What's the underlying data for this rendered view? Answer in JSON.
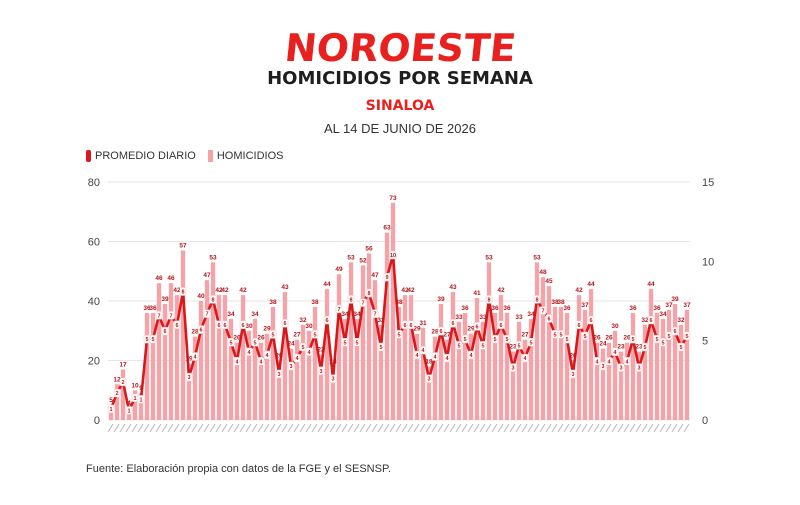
{
  "header": {
    "brand": "NOROESTE",
    "title": "HOMICIDIOS POR SEMANA",
    "region": "SINALOA",
    "date": "AL 14 DE JUNIO DE 2026"
  },
  "legend": {
    "line_label": "PROMEDIO DIARIO",
    "bar_label": "HOMICIDIOS"
  },
  "source": "Fuente: Elaboración propia con datos de la FGE y el SESNSP.",
  "colors": {
    "bar": "#f5a3a8",
    "line": "#d7191c",
    "accent": "#e8211f"
  },
  "chart_data": {
    "type": "bar",
    "grid": true,
    "legend_position": "top-left",
    "y_left": {
      "ticks": [
        0,
        20,
        40,
        60,
        80
      ],
      "ylim": [
        0,
        80
      ]
    },
    "y_right": {
      "ticks": [
        0,
        5,
        10,
        15
      ],
      "ylim": [
        0,
        15
      ]
    },
    "series": [
      {
        "name": "HOMICIDIOS",
        "type": "bar",
        "axis": "left",
        "values": [
          5,
          12,
          17,
          4,
          10,
          9,
          36,
          36,
          46,
          39,
          46,
          42,
          57,
          19,
          28,
          40,
          47,
          53,
          42,
          42,
          34,
          26,
          42,
          30,
          34,
          26,
          29,
          38,
          20,
          43,
          24,
          27,
          32,
          30,
          38,
          22,
          44,
          18,
          49,
          34,
          53,
          34,
          52,
          56,
          47,
          32,
          63,
          73,
          38,
          42,
          42,
          29,
          31,
          18,
          28,
          39,
          27,
          43,
          33,
          36,
          29,
          41,
          33,
          53,
          36,
          42,
          36,
          23,
          33,
          27,
          34,
          53,
          48,
          45,
          38,
          38,
          36,
          20,
          42,
          37,
          44,
          26,
          24,
          26,
          30,
          23,
          26,
          36,
          23,
          32,
          44,
          36,
          34,
          37,
          39,
          32,
          37
        ],
        "labels": [
          "5",
          "12",
          "17",
          "4",
          "10",
          "9",
          "36",
          "36",
          "46",
          "39",
          "46",
          "42",
          "57",
          "19",
          "28",
          "40",
          "47",
          "53",
          "42",
          "42",
          "34",
          "26",
          "42",
          "30",
          "34",
          "26",
          "29",
          "38",
          "20",
          "43",
          "24",
          "27",
          "32",
          "30",
          "38",
          "22",
          "44",
          "18",
          "49",
          "34",
          "53",
          "34",
          "52",
          "56",
          "47",
          "32",
          "63",
          "73",
          "38",
          "42",
          "42",
          "29",
          "31",
          "18",
          "28",
          "39",
          "27",
          "43",
          "33",
          "36",
          "29",
          "41",
          "33",
          "53",
          "36",
          "42",
          "36",
          "23",
          "33",
          "27",
          "34",
          "53",
          "48",
          "45",
          "38",
          "38",
          "36",
          "20",
          "42",
          "37",
          "44",
          "26",
          "24",
          "26",
          "30",
          "23",
          "26",
          "36",
          "23",
          "32",
          "44",
          "36",
          "34",
          "37",
          "39",
          "32",
          "37"
        ]
      },
      {
        "name": "PROMEDIO DIARIO",
        "type": "line",
        "axis": "right",
        "values": [
          0.7,
          1.7,
          2.4,
          0.6,
          1.4,
          1.3,
          5.1,
          5.1,
          6.6,
          5.6,
          6.6,
          6.0,
          8.1,
          2.7,
          4.0,
          5.7,
          6.7,
          7.6,
          6.0,
          6.0,
          4.9,
          3.7,
          6.0,
          4.3,
          4.9,
          3.7,
          4.1,
          5.4,
          2.9,
          6.1,
          3.4,
          3.9,
          4.6,
          4.3,
          5.4,
          3.1,
          6.3,
          2.6,
          7.0,
          4.9,
          7.6,
          4.9,
          7.4,
          8.0,
          6.7,
          4.6,
          9.0,
          10.4,
          5.4,
          6.0,
          6.0,
          4.1,
          4.4,
          2.6,
          4.0,
          5.6,
          3.9,
          6.1,
          4.7,
          5.1,
          4.1,
          5.9,
          4.7,
          7.6,
          5.1,
          6.0,
          5.1,
          3.3,
          4.7,
          3.9,
          4.9,
          7.6,
          6.9,
          6.4,
          5.4,
          5.4,
          5.1,
          2.9,
          6.0,
          5.3,
          6.3,
          3.7,
          3.4,
          3.7,
          4.3,
          3.3,
          3.7,
          5.1,
          3.3,
          4.6,
          6.3,
          5.1,
          4.9,
          5.3,
          5.6,
          4.6,
          5.3
        ],
        "labels": [
          "1",
          "2",
          "2",
          "1",
          "1",
          "1",
          "5",
          "5",
          "7",
          "6",
          "7",
          "6",
          "8",
          "3",
          "4",
          "6",
          "7",
          "8",
          "6",
          "6",
          "5",
          "4",
          "6",
          "4",
          "5",
          "4",
          "4",
          "5",
          "3",
          "6",
          "3",
          "4",
          "5",
          "4",
          "5",
          "3",
          "6",
          "3",
          "7",
          "5",
          "8",
          "5",
          "7",
          "8",
          "7",
          "5",
          "9",
          "10",
          "5",
          "6",
          "6",
          "4",
          "4",
          "3",
          "4",
          "6",
          "4",
          "6",
          "5",
          "5",
          "4",
          "6",
          "5",
          "8",
          "5",
          "6",
          "5",
          "3",
          "5",
          "4",
          "5",
          "8",
          "7",
          "6",
          "5",
          "5",
          "5",
          "3",
          "6",
          "5",
          "6",
          "4",
          "3",
          "4",
          "4",
          "3",
          "4",
          "5",
          "3",
          "5",
          "6",
          "5",
          "5",
          "5",
          "6",
          "5",
          "5"
        ]
      }
    ]
  }
}
